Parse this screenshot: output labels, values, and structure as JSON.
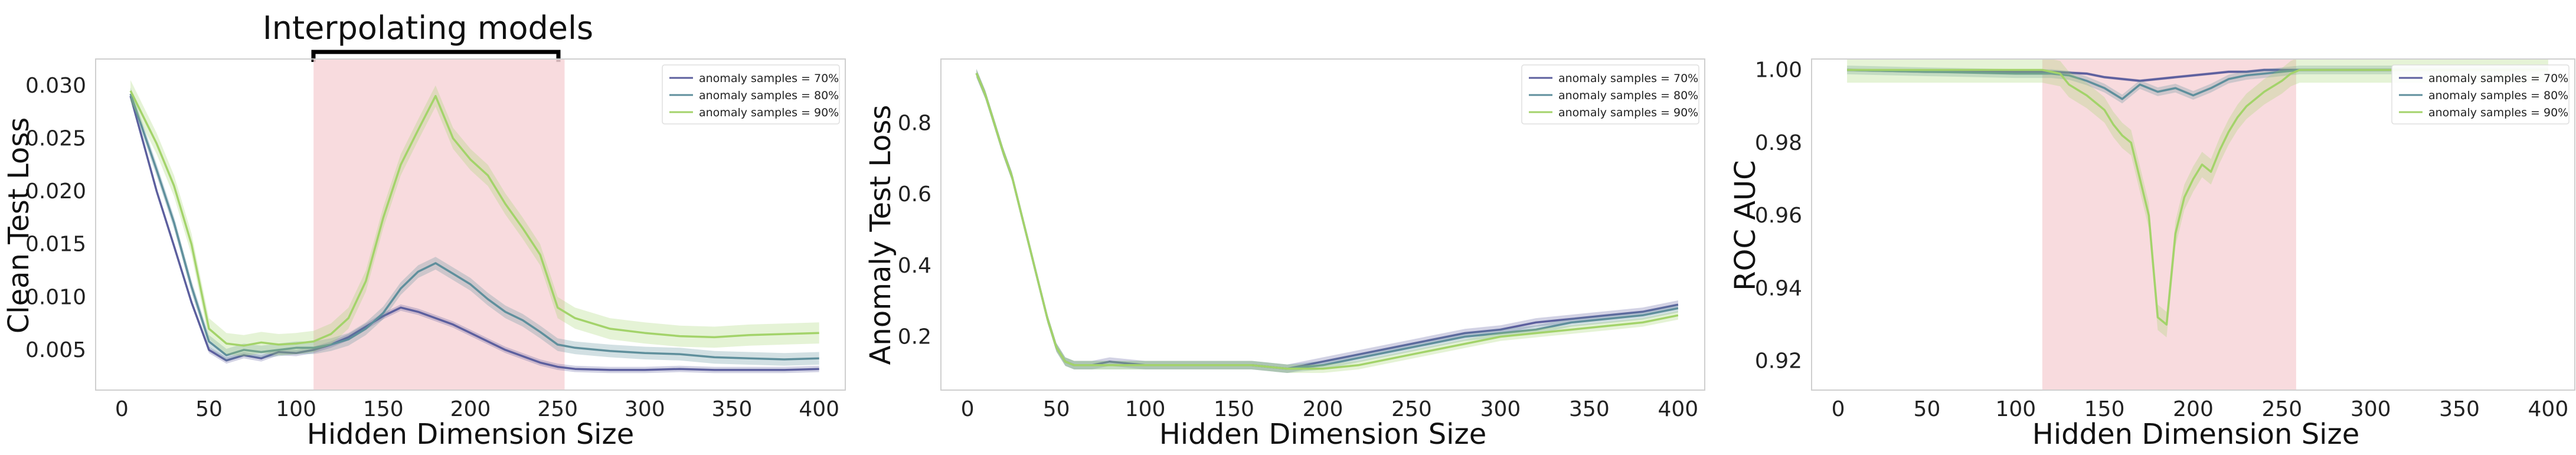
{
  "annotation": {
    "text": "Interpolating models"
  },
  "colors": {
    "s70": "#5c5f9e",
    "s80": "#5f8f9c",
    "s90": "#a3d36a",
    "shade": "#f7d5d8",
    "border": "#cfcfcf"
  },
  "chart_data": [
    {
      "type": "line",
      "xlabel": "Hidden Dimension Size",
      "ylabel": "Clean Test Loss",
      "xlim": [
        -15,
        415
      ],
      "ylim": [
        0.0012,
        0.0325
      ],
      "xticks": [
        0,
        50,
        100,
        150,
        200,
        250,
        300,
        350,
        400
      ],
      "yticks": [
        0.005,
        0.01,
        0.015,
        0.02,
        0.025,
        0.03
      ],
      "ytick_labels": [
        "0.005",
        "0.010",
        "0.015",
        "0.020",
        "0.025",
        "0.030"
      ],
      "shaded_x": [
        110,
        254
      ],
      "legend": "top-right",
      "legend_labels": [
        "anomaly samples = 70%",
        "anomaly samples = 80%",
        "anomaly samples = 90%"
      ],
      "series": [
        {
          "key": "s70",
          "x": [
            5,
            20,
            30,
            40,
            50,
            60,
            70,
            80,
            90,
            100,
            110,
            120,
            130,
            140,
            150,
            160,
            170,
            180,
            190,
            200,
            210,
            220,
            230,
            240,
            250,
            260,
            280,
            300,
            320,
            340,
            360,
            380,
            400
          ],
          "y": [
            0.029,
            0.02,
            0.0148,
            0.0095,
            0.005,
            0.004,
            0.0045,
            0.0042,
            0.0048,
            0.0047,
            0.005,
            0.0055,
            0.0062,
            0.0072,
            0.0082,
            0.009,
            0.0086,
            0.008,
            0.0074,
            0.0066,
            0.0058,
            0.005,
            0.0044,
            0.0038,
            0.0034,
            0.0032,
            0.0031,
            0.0031,
            0.0032,
            0.0031,
            0.0031,
            0.0031,
            0.0032
          ],
          "band": 0.0003
        },
        {
          "key": "s80",
          "x": [
            5,
            20,
            30,
            40,
            50,
            60,
            70,
            80,
            90,
            100,
            110,
            120,
            130,
            140,
            150,
            160,
            170,
            180,
            190,
            200,
            210,
            220,
            230,
            240,
            250,
            260,
            280,
            300,
            320,
            340,
            360,
            380,
            400
          ],
          "y": [
            0.0292,
            0.022,
            0.017,
            0.011,
            0.0058,
            0.0045,
            0.005,
            0.0048,
            0.005,
            0.0052,
            0.0052,
            0.0055,
            0.006,
            0.007,
            0.0085,
            0.0108,
            0.0124,
            0.0132,
            0.0122,
            0.0112,
            0.0098,
            0.0086,
            0.0078,
            0.0067,
            0.0055,
            0.0052,
            0.0049,
            0.0047,
            0.0046,
            0.0043,
            0.0042,
            0.0041,
            0.0042
          ],
          "band": 0.0006
        },
        {
          "key": "s90",
          "x": [
            5,
            20,
            30,
            40,
            50,
            60,
            70,
            80,
            90,
            100,
            110,
            120,
            130,
            140,
            150,
            160,
            170,
            180,
            190,
            200,
            210,
            220,
            230,
            240,
            250,
            260,
            280,
            300,
            320,
            340,
            360,
            380,
            400
          ],
          "y": [
            0.0295,
            0.0245,
            0.0205,
            0.015,
            0.007,
            0.0056,
            0.0054,
            0.0057,
            0.0055,
            0.0056,
            0.0058,
            0.0065,
            0.008,
            0.0115,
            0.0175,
            0.0225,
            0.0258,
            0.029,
            0.025,
            0.023,
            0.0215,
            0.0188,
            0.0165,
            0.014,
            0.009,
            0.008,
            0.007,
            0.0066,
            0.0063,
            0.0062,
            0.0064,
            0.0065,
            0.0066
          ],
          "band": 0.001
        }
      ]
    },
    {
      "type": "line",
      "xlabel": "Hidden Dimension Size",
      "ylabel": "Anomaly Test Loss",
      "xlim": [
        -15,
        415
      ],
      "ylim": [
        0.05,
        0.98
      ],
      "xticks": [
        0,
        50,
        100,
        150,
        200,
        250,
        300,
        350,
        400
      ],
      "yticks": [
        0.2,
        0.4,
        0.6,
        0.8
      ],
      "ytick_labels": [
        "0.2",
        "0.4",
        "0.6",
        "0.8"
      ],
      "legend": "top-right",
      "legend_labels": [
        "anomaly samples = 70%",
        "anomaly samples = 80%",
        "anomaly samples = 90%"
      ],
      "series": [
        {
          "key": "s70",
          "x": [
            5,
            10,
            15,
            20,
            25,
            30,
            35,
            40,
            45,
            50,
            55,
            60,
            70,
            80,
            100,
            120,
            140,
            160,
            180,
            200,
            220,
            240,
            260,
            280,
            300,
            320,
            340,
            360,
            380,
            400
          ],
          "y": [
            0.94,
            0.88,
            0.8,
            0.72,
            0.65,
            0.55,
            0.45,
            0.35,
            0.25,
            0.17,
            0.13,
            0.12,
            0.12,
            0.13,
            0.12,
            0.12,
            0.12,
            0.12,
            0.11,
            0.13,
            0.15,
            0.17,
            0.19,
            0.21,
            0.22,
            0.24,
            0.25,
            0.26,
            0.27,
            0.29
          ],
          "band": 0.012
        },
        {
          "key": "s80",
          "x": [
            5,
            10,
            15,
            20,
            25,
            30,
            35,
            40,
            45,
            50,
            55,
            60,
            70,
            80,
            100,
            120,
            140,
            160,
            180,
            200,
            220,
            240,
            260,
            280,
            300,
            320,
            340,
            360,
            380,
            400
          ],
          "y": [
            0.94,
            0.88,
            0.8,
            0.72,
            0.65,
            0.55,
            0.45,
            0.35,
            0.25,
            0.17,
            0.13,
            0.12,
            0.12,
            0.12,
            0.12,
            0.12,
            0.12,
            0.12,
            0.11,
            0.12,
            0.14,
            0.16,
            0.18,
            0.2,
            0.21,
            0.22,
            0.24,
            0.25,
            0.26,
            0.28
          ],
          "band": 0.012
        },
        {
          "key": "s90",
          "x": [
            5,
            10,
            15,
            20,
            25,
            30,
            35,
            40,
            45,
            50,
            55,
            60,
            70,
            80,
            100,
            120,
            140,
            160,
            180,
            200,
            220,
            240,
            260,
            280,
            300,
            320,
            340,
            360,
            380,
            400
          ],
          "y": [
            0.94,
            0.88,
            0.8,
            0.72,
            0.65,
            0.55,
            0.45,
            0.35,
            0.25,
            0.17,
            0.13,
            0.12,
            0.12,
            0.12,
            0.12,
            0.12,
            0.12,
            0.12,
            0.11,
            0.11,
            0.12,
            0.14,
            0.16,
            0.18,
            0.2,
            0.21,
            0.22,
            0.23,
            0.24,
            0.26
          ],
          "band": 0.012
        }
      ]
    },
    {
      "type": "line",
      "xlabel": "Hidden Dimension Size",
      "ylabel": "ROC AUC",
      "xlim": [
        -15,
        415
      ],
      "ylim": [
        0.912,
        1.003
      ],
      "xticks": [
        0,
        50,
        100,
        150,
        200,
        250,
        300,
        350,
        400
      ],
      "yticks": [
        0.92,
        0.94,
        0.96,
        0.98,
        1.0
      ],
      "ytick_labels": [
        "0.92",
        "0.94",
        "0.96",
        "0.98",
        "1.00"
      ],
      "shaded_x": [
        115,
        258
      ],
      "legend": "top-right",
      "legend_labels": [
        "anomaly samples = 70%",
        "anomaly samples = 80%",
        "anomaly samples = 90%"
      ],
      "series": [
        {
          "key": "s70",
          "x": [
            5,
            50,
            100,
            120,
            140,
            150,
            160,
            170,
            180,
            190,
            200,
            210,
            220,
            230,
            240,
            250,
            260,
            300,
            350,
            400
          ],
          "y": [
            1.0,
            0.9995,
            0.9995,
            0.9995,
            0.999,
            0.998,
            0.9975,
            0.997,
            0.9975,
            0.998,
            0.9985,
            0.999,
            0.9995,
            0.9995,
            1.0,
            1.0,
            1.0,
            1.0,
            1.0,
            1.0
          ],
          "band": 0.0004
        },
        {
          "key": "s80",
          "x": [
            5,
            50,
            100,
            120,
            130,
            140,
            150,
            160,
            170,
            180,
            190,
            200,
            210,
            220,
            230,
            240,
            250,
            260,
            300,
            350,
            400
          ],
          "y": [
            1.0,
            0.9995,
            0.999,
            0.999,
            0.9985,
            0.997,
            0.995,
            0.992,
            0.996,
            0.994,
            0.995,
            0.993,
            0.995,
            0.9975,
            0.9985,
            0.999,
            0.9995,
            1.0,
            1.0,
            1.0,
            1.0
          ],
          "band": 0.0012
        },
        {
          "key": "s90",
          "x": [
            5,
            50,
            100,
            115,
            125,
            130,
            140,
            150,
            155,
            160,
            165,
            170,
            175,
            180,
            185,
            190,
            195,
            200,
            205,
            210,
            215,
            220,
            225,
            230,
            240,
            250,
            255,
            260,
            300,
            350,
            400
          ],
          "y": [
            1.0,
            1.0,
            1.0,
            1.0,
            0.999,
            0.996,
            0.993,
            0.989,
            0.985,
            0.982,
            0.98,
            0.97,
            0.96,
            0.932,
            0.93,
            0.955,
            0.965,
            0.97,
            0.974,
            0.972,
            0.978,
            0.983,
            0.987,
            0.99,
            0.994,
            0.997,
            0.999,
            1.0,
            1.0,
            1.0,
            1.0
          ],
          "band": 0.0035
        }
      ]
    }
  ]
}
